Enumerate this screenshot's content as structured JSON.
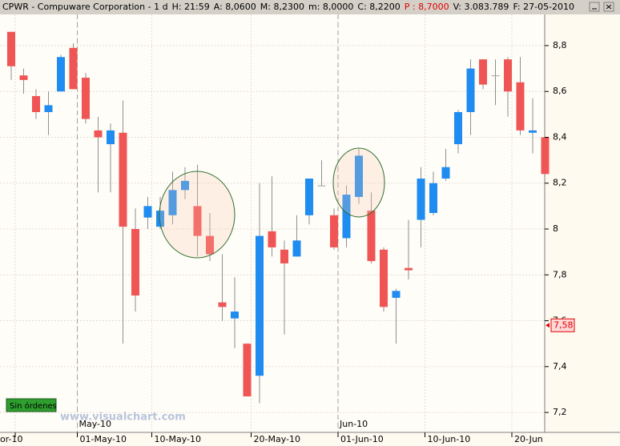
{
  "header": {
    "symbol": "CPWR - Compuware Corporation - 1 d",
    "items": [
      "H: 21:59",
      "A: 8,0600",
      "M: 8,2300",
      "m: 8,0000",
      "C: 8,2200",
      "P : 8,7000",
      "V: 3.083.789",
      "F: 27-05-2010"
    ]
  },
  "chart_data": {
    "type": "candlestick",
    "categories": [
      "or-10",
      null,
      null,
      null,
      null,
      "01-May-10",
      null,
      null,
      null,
      null,
      null,
      "10-May-10",
      null,
      null,
      null,
      null,
      null,
      null,
      null,
      "20-May-10",
      null,
      null,
      null,
      null,
      null,
      null,
      "01-Jun-10",
      null,
      null,
      null,
      null,
      null,
      null,
      "10-Jun-10",
      null,
      null,
      null,
      null,
      null,
      null,
      "20-Jun",
      null,
      null,
      null
    ],
    "month_labels": [
      null,
      null,
      null,
      null,
      null,
      "May-10",
      null,
      null,
      null,
      null,
      null,
      null,
      null,
      null,
      null,
      null,
      null,
      null,
      null,
      null,
      null,
      null,
      null,
      null,
      null,
      null,
      "Jun-10",
      null,
      null,
      null,
      null,
      null,
      null,
      null,
      null,
      null,
      null,
      null,
      null,
      null,
      null,
      null,
      null,
      null
    ],
    "open": [
      8.86,
      8.67,
      8.58,
      8.51,
      8.6,
      8.79,
      8.66,
      8.43,
      8.37,
      8.42,
      8.0,
      8.05,
      8.01,
      8.06,
      8.17,
      8.1,
      7.97,
      7.68,
      7.61,
      7.5,
      7.36,
      7.99,
      7.91,
      7.88,
      8.06,
      8.19,
      8.06,
      7.96,
      8.14,
      8.08,
      7.91,
      7.7,
      7.83,
      8.04,
      8.07,
      8.22,
      8.37,
      8.51,
      8.74,
      8.67,
      8.74,
      8.64,
      8.42,
      8.4
    ],
    "high": [
      8.86,
      8.7,
      8.61,
      8.6,
      8.76,
      8.81,
      8.68,
      8.49,
      8.46,
      8.56,
      8.09,
      8.14,
      8.14,
      8.25,
      8.27,
      8.28,
      8.07,
      7.89,
      7.79,
      7.5,
      8.2,
      8.23,
      7.95,
      8.06,
      8.22,
      8.3,
      8.09,
      8.19,
      8.35,
      8.16,
      7.92,
      7.74,
      8.04,
      8.27,
      8.25,
      8.35,
      8.52,
      8.74,
      8.74,
      8.74,
      8.75,
      8.75,
      8.57,
      8.4
    ],
    "low": [
      8.65,
      8.59,
      8.48,
      8.41,
      8.6,
      8.61,
      8.46,
      8.16,
      8.16,
      7.5,
      7.64,
      8.0,
      8.0,
      8.02,
      8.13,
      7.88,
      7.86,
      7.6,
      7.48,
      7.27,
      7.24,
      7.88,
      7.54,
      7.88,
      8.02,
      8.19,
      7.91,
      7.92,
      8.11,
      7.85,
      7.64,
      7.5,
      7.78,
      7.92,
      8.06,
      8.21,
      8.33,
      8.41,
      8.61,
      8.54,
      8.49,
      8.41,
      8.33,
      8.24
    ],
    "close": [
      8.71,
      8.65,
      8.51,
      8.54,
      8.75,
      8.61,
      8.48,
      8.4,
      8.43,
      8.01,
      7.71,
      8.1,
      8.08,
      8.17,
      8.21,
      7.97,
      7.89,
      7.66,
      7.64,
      7.27,
      7.97,
      7.92,
      7.85,
      7.95,
      8.22,
      8.19,
      7.92,
      8.15,
      8.32,
      7.86,
      7.66,
      7.73,
      7.82,
      8.22,
      8.2,
      8.27,
      8.51,
      8.7,
      8.63,
      8.67,
      8.6,
      8.43,
      8.43,
      8.24
    ],
    "up_color": "#1e8cf0",
    "down_color": "#f05555",
    "doji_color": "#a0a0a0",
    "ylim": [
      7.113,
      8.936
    ],
    "yticks": [
      {
        "value": 8.8,
        "label": "8,8"
      },
      {
        "value": 8.6,
        "label": "8,6"
      },
      {
        "value": 8.4,
        "label": "8,4"
      },
      {
        "value": 8.2,
        "label": "8,2"
      },
      8,
      {
        "value": 7.8,
        "label": "7,8"
      },
      {
        "value": 7.6,
        "label": "7,6"
      },
      {
        "value": 7.4,
        "label": "7,4"
      },
      {
        "value": 7.2,
        "label": "7,2"
      }
    ],
    "last_price": {
      "value": 7.58,
      "label": "7,58"
    },
    "grid": true
  },
  "status": "Sin órdenes",
  "watermark": "www.visualchart.com"
}
